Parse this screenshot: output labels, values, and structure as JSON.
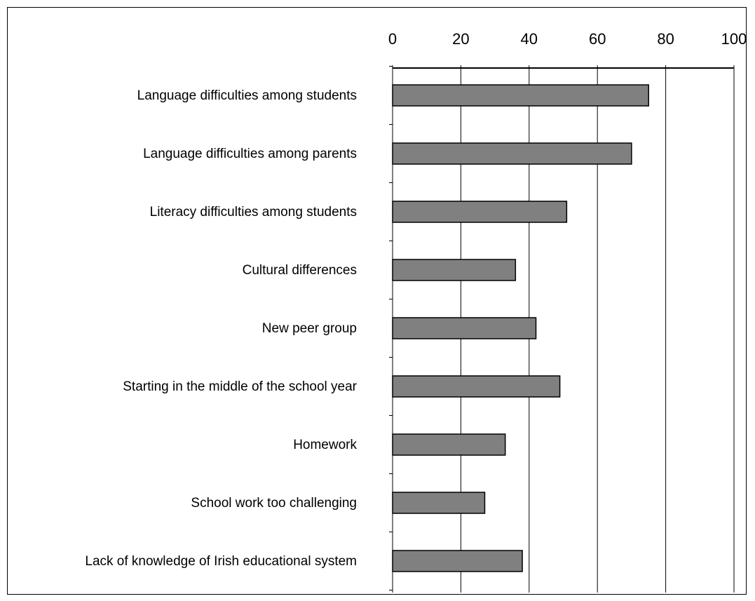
{
  "chart_data": {
    "type": "bar",
    "orientation": "horizontal",
    "title": "",
    "xlabel": "",
    "ylabel": "",
    "categories": [
      "Language difficulties among students",
      "Language difficulties among parents",
      "Literacy difficulties among students",
      "Cultural differences",
      "New peer group",
      "Starting in the middle of the school year",
      "Homework",
      "School work too challenging",
      "Lack of knowledge of Irish educational system"
    ],
    "values": [
      75,
      70,
      51,
      36,
      42,
      49,
      33,
      27,
      38
    ],
    "xlim": [
      0,
      100
    ],
    "ticks": [
      "0",
      "20",
      "40",
      "60",
      "80",
      "100"
    ],
    "axis_position": "top",
    "grid": true,
    "bar_color": "#808080",
    "bar_edge_color": "#000000"
  }
}
